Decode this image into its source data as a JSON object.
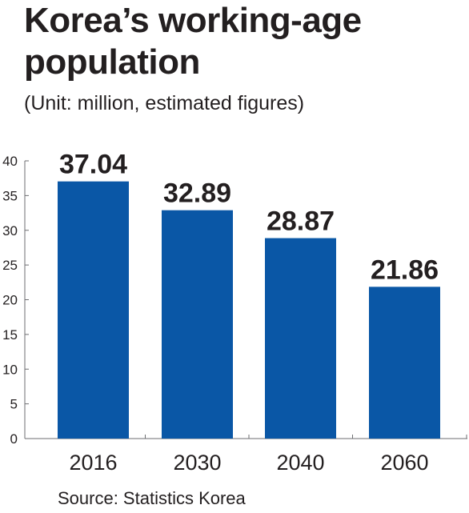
{
  "colors": {
    "bar": "#0a57a6",
    "axis": "#6d6e71",
    "text": "#231f20"
  },
  "chart_data": {
    "type": "bar",
    "title": "Korea’s working-age population",
    "subtitle": "(Unit: million, estimated figures)",
    "source": "Source: Statistics Korea",
    "categories": [
      "2016",
      "2030",
      "2040",
      "2060"
    ],
    "values": [
      37.04,
      32.89,
      28.87,
      21.86
    ],
    "value_labels": [
      "37.04",
      "32.89",
      "28.87",
      "21.86"
    ],
    "yticks": [
      "0",
      "5",
      "10",
      "15",
      "20",
      "25",
      "30",
      "35",
      "40"
    ],
    "ylim": [
      0,
      40
    ],
    "xlabel": "",
    "ylabel": "",
    "grid": false,
    "legend": "none"
  }
}
